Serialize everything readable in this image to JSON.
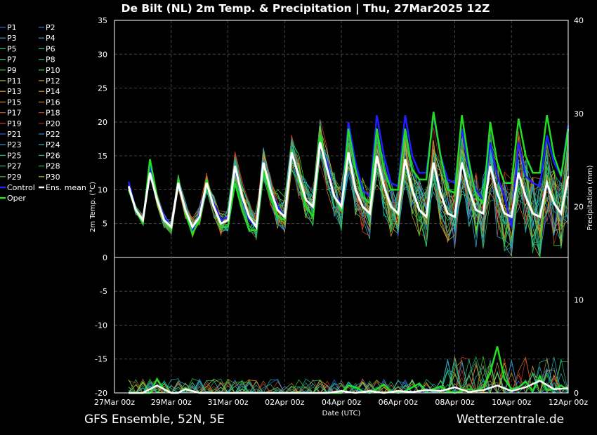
{
  "chart_data": {
    "type": "line",
    "title": "De Bilt  (NL)  2m Temp. & Precipitation | Thu, 27Mar2025 12Z",
    "xlabel": "Date (UTC)",
    "ylabel": "2m Temp. (°C)",
    "y2label": "Precipitation (mm)",
    "ylim": [
      -20,
      35
    ],
    "y2lim": [
      0,
      40
    ],
    "yticks": [
      "35",
      "30",
      "25",
      "20",
      "15",
      "10",
      "5",
      "0",
      "-5",
      "-10",
      "-15",
      "-20"
    ],
    "y2ticks": [
      "40",
      "30",
      "20",
      "10",
      "0"
    ],
    "xticks": [
      "27Mar 00z",
      "29Mar 00z",
      "31Mar 00z",
      "02Apr 00z",
      "04Apr 00z",
      "06Apr 00z",
      "08Apr 00z",
      "10Apr 00z",
      "12Apr 00z"
    ],
    "xlim_hours": [
      0,
      384
    ],
    "grid": true,
    "legend_position": "left",
    "legend": [
      "P1",
      "P2",
      "P3",
      "P4",
      "P5",
      "P6",
      "P7",
      "P8",
      "P9",
      "P10",
      "P11",
      "P12",
      "P13",
      "P14",
      "P15",
      "P16",
      "P17",
      "P18",
      "P19",
      "P20",
      "P21",
      "P22",
      "P23",
      "P24",
      "P25",
      "P26",
      "P27",
      "P28",
      "P29",
      "P30",
      "Control",
      "Ens. mean",
      "Oper"
    ],
    "member_colors": [
      "#3b5bdb",
      "#2f6fe0",
      "#2aa1b8",
      "#2f9ec9",
      "#23b0a8",
      "#1fbf9a",
      "#1fb886",
      "#1faa6a",
      "#2bc24a",
      "#2ed82e",
      "#a8c42a",
      "#c9b02a",
      "#c8a52a",
      "#d19a2a",
      "#c98a2a",
      "#c9772a",
      "#c8602a",
      "#c84a2a",
      "#c8402a",
      "#a8301e",
      "#2e5fd0",
      "#2a86d8",
      "#2aa0d0",
      "#2ab6c0",
      "#22c0a8",
      "#22c890",
      "#20c070",
      "#20b850",
      "#3ac830",
      "#b8c020"
    ],
    "series": [
      {
        "name": "Control",
        "color": "#2020ff",
        "hours": [
          12,
          18,
          24,
          30,
          36,
          42,
          48,
          54,
          60,
          66,
          72,
          78,
          84,
          90,
          96,
          102,
          108,
          114,
          120,
          126,
          132,
          138,
          144,
          150,
          156,
          162,
          168,
          174,
          180,
          186,
          192,
          198,
          204,
          210,
          216,
          222,
          228,
          234,
          240,
          246,
          252,
          258,
          264,
          270,
          276,
          282,
          288,
          294,
          300,
          306,
          312,
          318,
          324,
          330,
          336,
          342,
          348,
          354,
          360,
          366,
          372,
          378,
          384
        ],
        "values": [
          11.2,
          7,
          5.5,
          13.5,
          9,
          6,
          4.5,
          11.5,
          7,
          4,
          6.5,
          11,
          8,
          5.5,
          6,
          13,
          9,
          5.5,
          4.5,
          14,
          10,
          7.5,
          6,
          16,
          12,
          8.5,
          7.5,
          17,
          14,
          9,
          8,
          20,
          14,
          10,
          9,
          21,
          15,
          11,
          10.5,
          21,
          15,
          12.5,
          12.5,
          21,
          15,
          11.5,
          11,
          19,
          13,
          10,
          8.5,
          17,
          12,
          9,
          4.5,
          17,
          12,
          11,
          10.5,
          18,
          14,
          12,
          19.5
        ]
      },
      {
        "name": "Ens. mean",
        "color": "#ffffff",
        "hours": [
          12,
          18,
          24,
          30,
          36,
          42,
          48,
          54,
          60,
          66,
          72,
          78,
          84,
          90,
          96,
          102,
          108,
          114,
          120,
          126,
          132,
          138,
          144,
          150,
          156,
          162,
          168,
          174,
          180,
          186,
          192,
          198,
          204,
          210,
          216,
          222,
          228,
          234,
          240,
          246,
          252,
          258,
          264,
          270,
          276,
          282,
          288,
          294,
          300,
          306,
          312,
          318,
          324,
          330,
          336,
          342,
          348,
          354,
          360,
          366,
          372,
          378,
          384
        ],
        "values": [
          10.5,
          7,
          5.5,
          12.5,
          8.5,
          5.5,
          4.5,
          11,
          7,
          4.5,
          6,
          11,
          7.5,
          5,
          5.5,
          13.5,
          9,
          6,
          4.5,
          14,
          10,
          7,
          6,
          15.5,
          12,
          8.5,
          7.5,
          17,
          13,
          9,
          7.5,
          15.5,
          10,
          7.5,
          6.5,
          15,
          10.5,
          7.5,
          6.5,
          14.5,
          10,
          7,
          6,
          14,
          9.5,
          6.5,
          6,
          14,
          10,
          7,
          6.5,
          13.5,
          9.5,
          6.5,
          6,
          12.5,
          9,
          6.5,
          6,
          11,
          8,
          6.5,
          12
        ]
      },
      {
        "name": "Oper",
        "color": "#22dd22",
        "hours": [
          12,
          18,
          24,
          30,
          36,
          42,
          48,
          54,
          60,
          66,
          72,
          78,
          84,
          90,
          96,
          102,
          108,
          114,
          120,
          126,
          132,
          138,
          144,
          150,
          156,
          162,
          168,
          174,
          180,
          186,
          192,
          198,
          204,
          210,
          216,
          222,
          228,
          234,
          240,
          246,
          252,
          258,
          264,
          270,
          276,
          282,
          288,
          294,
          300,
          306,
          312,
          318,
          324,
          330,
          336,
          342,
          348,
          354,
          360,
          366,
          372,
          378,
          384
        ],
        "values": [
          10,
          7,
          5,
          14.5,
          9,
          5.5,
          4,
          11.5,
          6.5,
          3.5,
          5.5,
          11.5,
          7.5,
          4.5,
          4.5,
          11,
          7,
          4,
          4,
          13,
          9,
          6,
          5.5,
          16,
          11.5,
          7.5,
          6,
          18,
          13,
          9,
          7,
          19,
          13,
          9,
          8,
          19,
          13,
          10,
          10,
          19,
          13,
          11.5,
          11.5,
          21.5,
          15,
          10,
          9.5,
          21,
          14,
          9,
          8,
          20,
          14,
          11,
          11,
          20.5,
          15,
          12.5,
          12.5,
          21,
          15,
          12,
          19
        ]
      }
    ],
    "precip": {
      "ens_mean_hours": [
        12,
        24,
        36,
        48,
        54,
        60,
        72,
        84,
        96,
        108,
        120,
        132,
        144,
        156,
        168,
        180,
        192,
        204,
        216,
        228,
        240,
        252,
        264,
        276,
        288,
        300,
        312,
        324,
        336,
        348,
        360,
        372,
        384
      ],
      "ens_mean_mm": [
        0,
        0,
        0.8,
        0,
        0,
        0.4,
        0,
        0,
        0,
        0,
        0,
        0,
        0,
        0,
        0,
        0,
        0.2,
        0,
        0.2,
        0,
        0.2,
        0.1,
        0.3,
        0.2,
        0.6,
        0.1,
        0.3,
        0.8,
        0.2,
        0.6,
        1.3,
        0.4,
        0.5
      ],
      "oper_hours": [
        12,
        24,
        30,
        36,
        42,
        48,
        54,
        60,
        66,
        72,
        84,
        96,
        108,
        120,
        132,
        144,
        156,
        168,
        180,
        186,
        192,
        198,
        204,
        210,
        216,
        222,
        228,
        234,
        240,
        246,
        252,
        258,
        264,
        270,
        276,
        282,
        288,
        294,
        300,
        306,
        312,
        318,
        324,
        330,
        336,
        342,
        348,
        354,
        360,
        366,
        372,
        378,
        384
      ],
      "oper_mm": [
        0,
        0,
        0,
        1.5,
        0.3,
        0,
        0,
        0.5,
        0.2,
        0,
        0,
        0,
        0,
        0,
        0,
        0,
        0,
        0,
        0,
        0,
        0,
        0.8,
        0.6,
        0.2,
        0,
        0.4,
        0.9,
        0.2,
        0,
        0.2,
        0.6,
        1,
        0.2,
        0.4,
        0.7,
        0.2,
        0,
        0.2,
        0.4,
        0.2,
        0.6,
        2.2,
        5,
        1.5,
        0.4,
        0.6,
        1.2,
        0.2,
        1.8,
        0.3,
        0.4,
        0.8,
        0.3
      ]
    }
  },
  "footer": {
    "left": "GFS Ensemble, 52N, 5E",
    "right": "Wetterzentrale.de"
  }
}
